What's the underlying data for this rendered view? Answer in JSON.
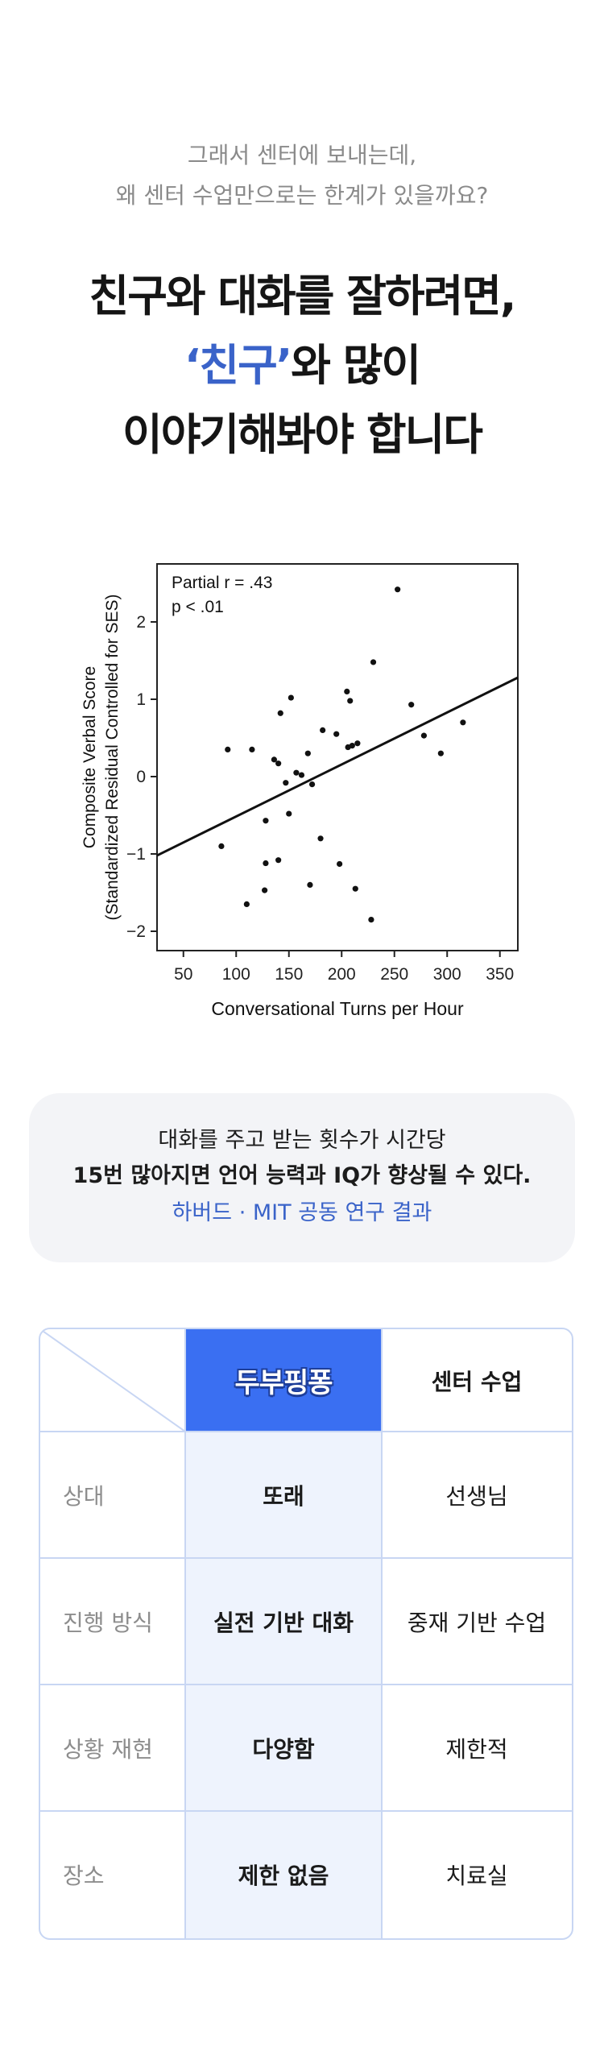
{
  "intro": {
    "line1": "그래서 센터에 보내는데,",
    "line2": "왜 센터 수업만으로는 한계가 있을까요?"
  },
  "headline": {
    "line1": "친구와 대화를 잘하려면,",
    "line2_accent": "‘친구’",
    "line2_rest": "와 많이",
    "line3": "이야기해봐야 합니다",
    "accent_color": "#3a63c9"
  },
  "chart_data": {
    "type": "scatter",
    "annotation_line1": "Partial r = .43",
    "annotation_line2": "p < .01",
    "xlabel": "Conversational Turns per Hour",
    "ylabel_line1": "Composite Verbal Score",
    "ylabel_line2": "(Standardized Residual Controlled for SES)",
    "xlim": [
      25,
      367
    ],
    "ylim": [
      -2.25,
      2.75
    ],
    "xticks": [
      50,
      100,
      150,
      200,
      250,
      300,
      350
    ],
    "yticks": [
      -2,
      -1,
      0,
      1,
      2
    ],
    "trendline": {
      "x": [
        25,
        367
      ],
      "y": [
        -1.02,
        1.28
      ]
    },
    "points": [
      [
        253,
        2.42
      ],
      [
        230,
        1.48
      ],
      [
        266,
        0.93
      ],
      [
        205,
        1.1
      ],
      [
        208,
        0.98
      ],
      [
        152,
        1.02
      ],
      [
        142,
        0.82
      ],
      [
        315,
        0.7
      ],
      [
        182,
        0.6
      ],
      [
        195,
        0.55
      ],
      [
        278,
        0.53
      ],
      [
        210,
        0.4
      ],
      [
        215,
        0.43
      ],
      [
        206,
        0.38
      ],
      [
        92,
        0.35
      ],
      [
        115,
        0.35
      ],
      [
        136,
        0.22
      ],
      [
        140,
        0.17
      ],
      [
        168,
        0.3
      ],
      [
        294,
        0.3
      ],
      [
        157,
        0.05
      ],
      [
        162,
        0.02
      ],
      [
        147,
        -0.08
      ],
      [
        172,
        -0.1
      ],
      [
        150,
        -0.48
      ],
      [
        128,
        -0.57
      ],
      [
        180,
        -0.8
      ],
      [
        86,
        -0.9
      ],
      [
        128,
        -1.12
      ],
      [
        140,
        -1.08
      ],
      [
        198,
        -1.13
      ],
      [
        170,
        -1.4
      ],
      [
        127,
        -1.47
      ],
      [
        213,
        -1.45
      ],
      [
        110,
        -1.65
      ],
      [
        228,
        -1.85
      ]
    ]
  },
  "callout": {
    "line1": "대화를 주고 받는 횟수가 시간당",
    "line2": "15번 많아지면 언어 능력과 IQ가 향상될 수 있다.",
    "source": "하버드 · MIT 공동 연구 결과"
  },
  "table": {
    "col_brand": "두부핑퐁",
    "col_center": "센터 수업",
    "rows": [
      {
        "label": "상대",
        "brand": "또래",
        "center": "선생님"
      },
      {
        "label": "진행 방식",
        "brand": "실전 기반 대화",
        "center": "중재 기반 수업"
      },
      {
        "label": "상황 재현",
        "brand": "다양함",
        "center": "제한적"
      },
      {
        "label": "장소",
        "brand": "제한 없음",
        "center": "치료실"
      }
    ],
    "border_color": "#c8d6f3",
    "brand_color": "#3a6ff2",
    "brand_column_bg": "#eef3fd"
  }
}
